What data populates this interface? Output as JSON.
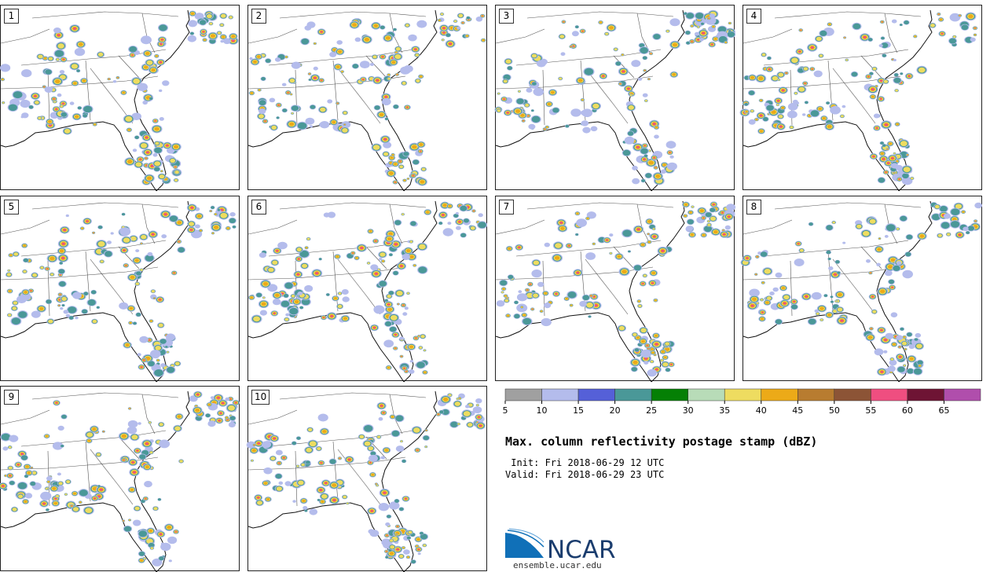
{
  "panels": [
    {
      "number": "1"
    },
    {
      "number": "2"
    },
    {
      "number": "3"
    },
    {
      "number": "4"
    },
    {
      "number": "5"
    },
    {
      "number": "6"
    },
    {
      "number": "7"
    },
    {
      "number": "8"
    },
    {
      "number": "9"
    },
    {
      "number": "10"
    }
  ],
  "colorbar": {
    "ticks": [
      "5",
      "10",
      "15",
      "20",
      "25",
      "30",
      "35",
      "40",
      "45",
      "50",
      "55",
      "60",
      "65"
    ],
    "colors": [
      "#a0a0a0",
      "#b4bcec",
      "#5560d8",
      "#4a9898",
      "#058005",
      "#b8dcb8",
      "#eedc60",
      "#ecaa18",
      "#b87c30",
      "#8c5436",
      "#ef4e80",
      "#6e1434",
      "#b04eac"
    ]
  },
  "title": "Max. column reflectivity postage stamp (dBZ)",
  "init_line": " Init: Fri 2018-06-29 12 UTC",
  "valid_line": "Valid: Fri 2018-06-29 23 UTC",
  "logo_text": "NCAR",
  "url": "ensemble.ucar.edu"
}
